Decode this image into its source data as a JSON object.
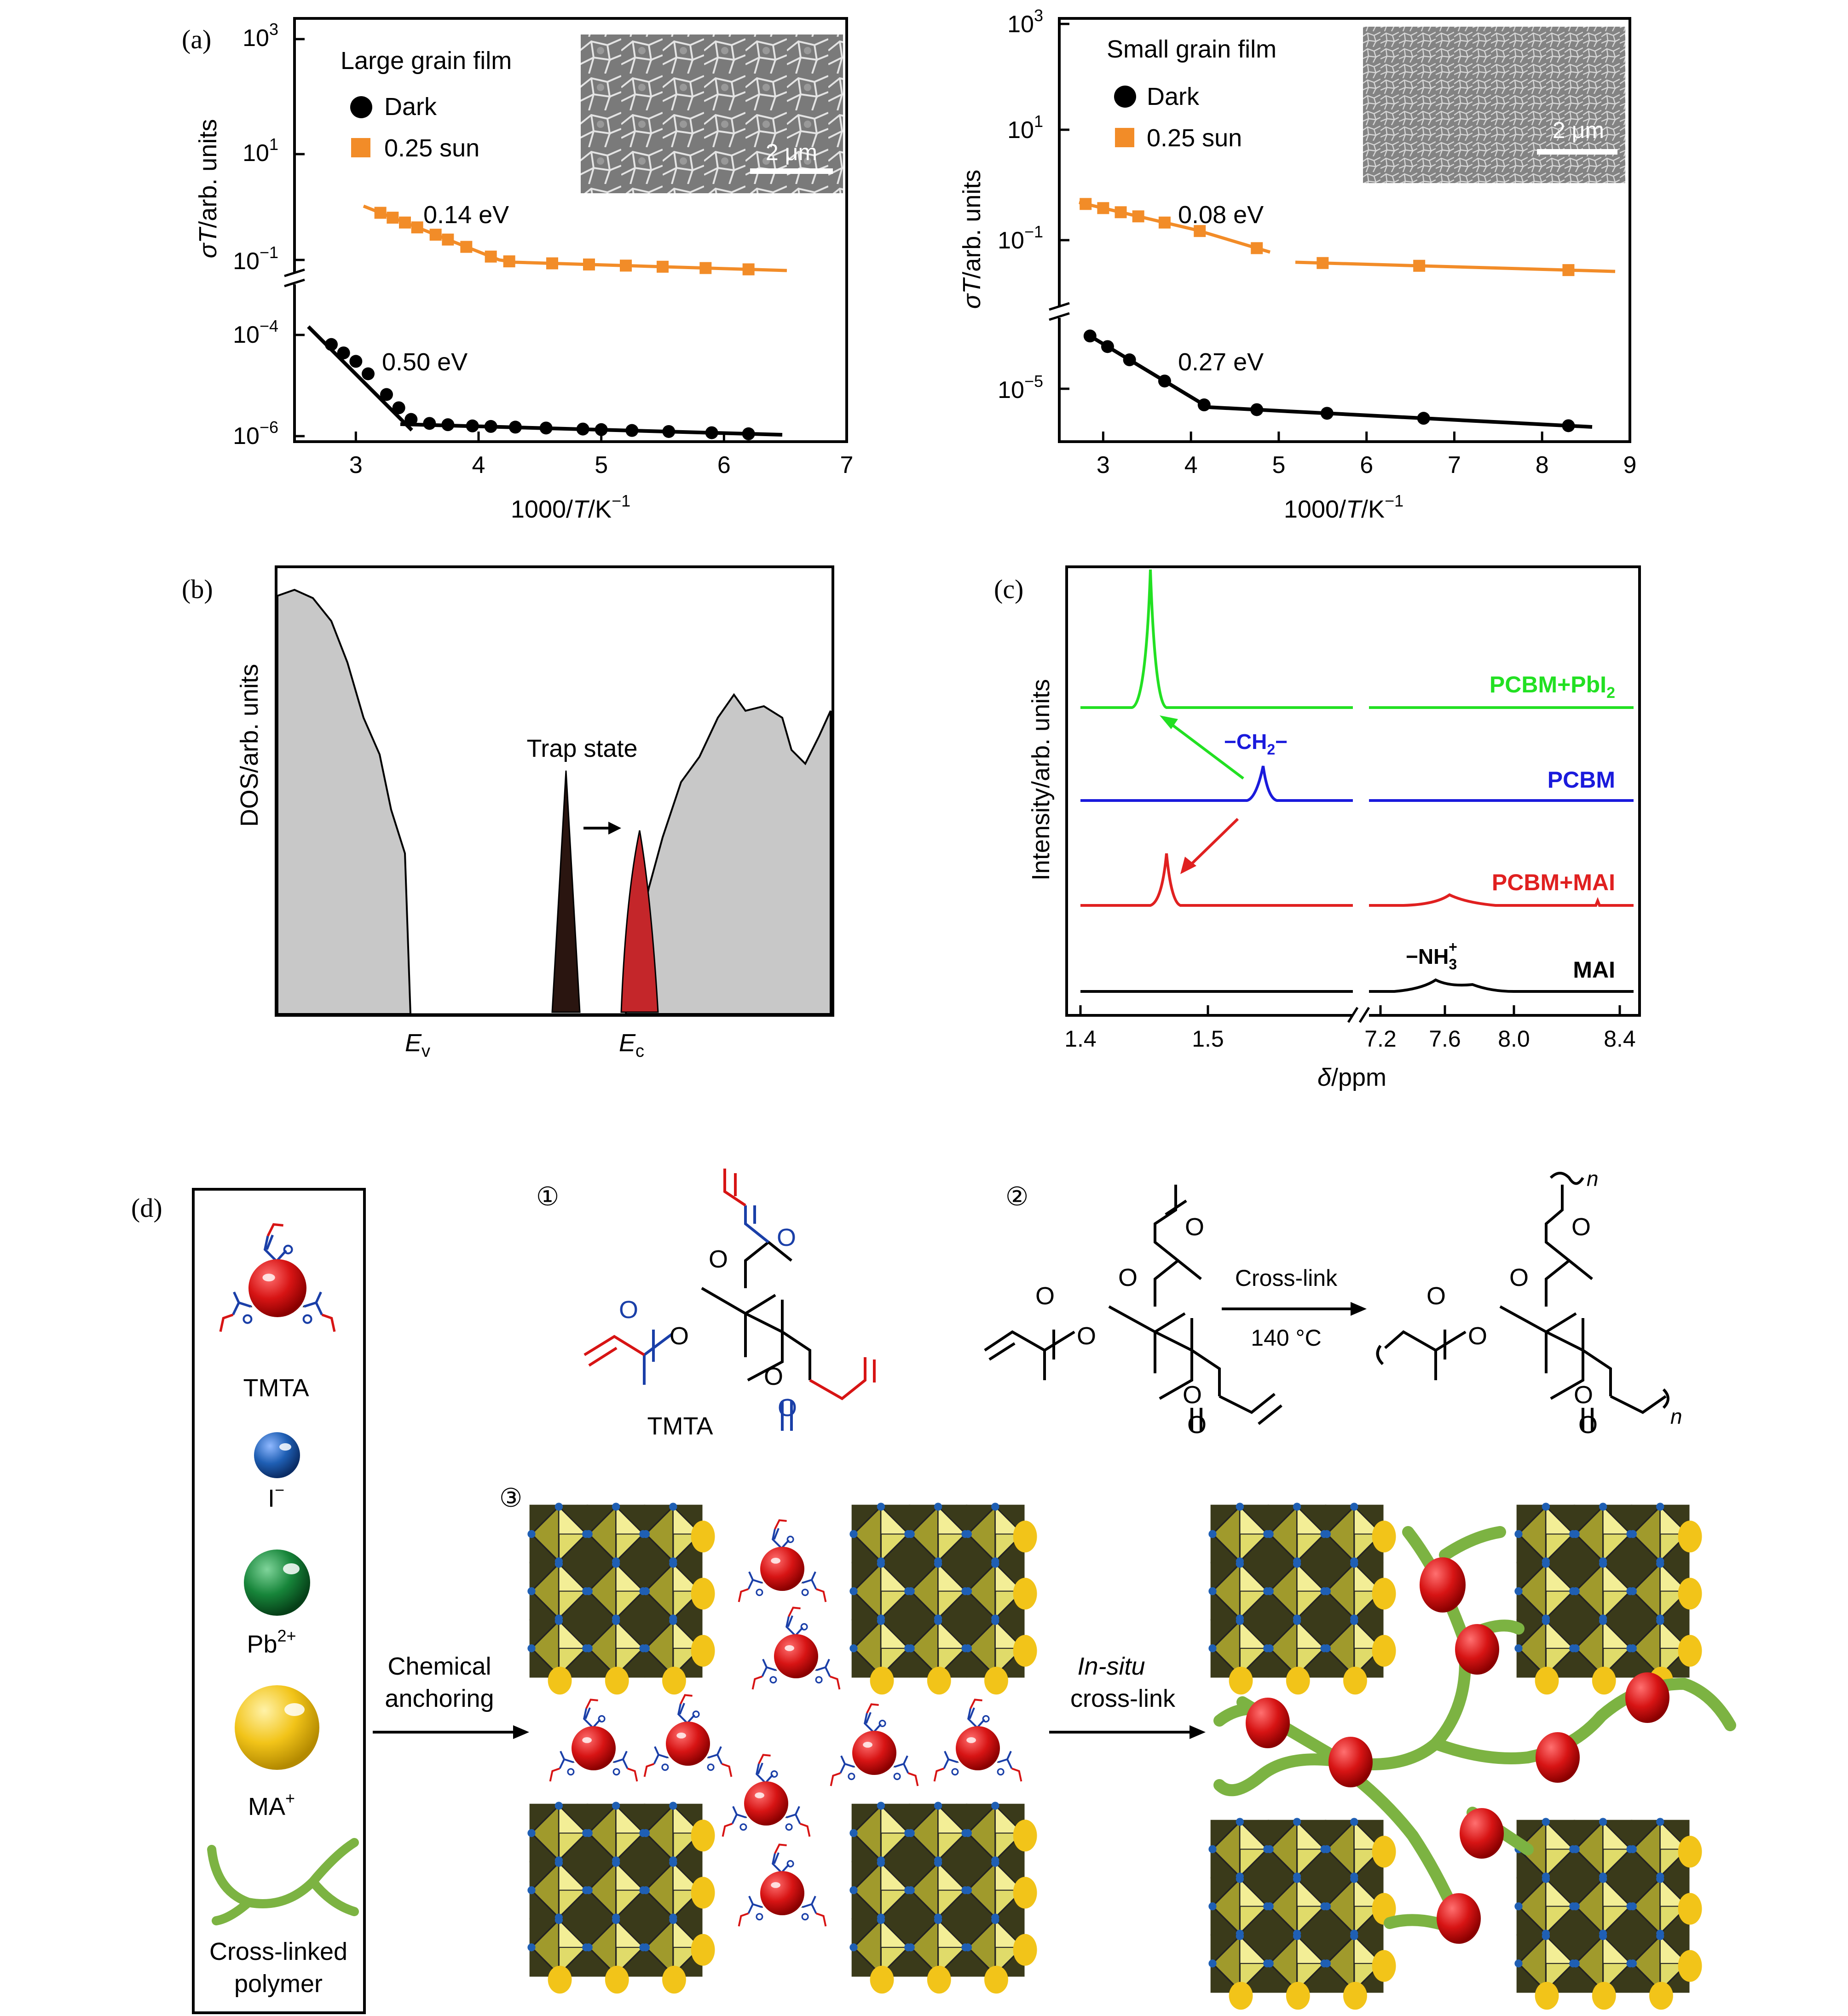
{
  "panels": {
    "a": "(a)",
    "b": "(b)",
    "c": "(c)",
    "d": "(d)"
  },
  "chart_data": [
    {
      "id": "a-left",
      "type": "scatter",
      "xlabel_prefix": "1000/",
      "xlabel_T": "T",
      "xlabel_unit": "/K",
      "xlabel_sup": "−1",
      "ylabel_sigma": "σ",
      "ylabel_T": "T",
      "ylabel_rest": "/arb. units",
      "xlim": [
        2.5,
        7
      ],
      "xticks": [
        "3",
        "4",
        "5",
        "6",
        "7"
      ],
      "yticks_top": [
        "10",
        "10",
        "10"
      ],
      "yticks_top_exp": [
        "3",
        "1",
        "−1"
      ],
      "yticks_bottom": [
        "10",
        "10"
      ],
      "yticks_bottom_exp": [
        "−4",
        "−6"
      ],
      "legend_title": "Large grain film",
      "series": [
        {
          "name": "Dark",
          "color": "#000000",
          "marker": "circle",
          "x": [
            2.8,
            2.9,
            3.0,
            3.1,
            3.25,
            3.35,
            3.45,
            3.6,
            3.75,
            3.95,
            4.1,
            4.3,
            4.55,
            4.85,
            5.0,
            5.25,
            5.55,
            5.9,
            6.2
          ]
        },
        {
          "name": "0.25 sun",
          "color": "#f28c28",
          "marker": "square",
          "x": [
            3.2,
            3.3,
            3.4,
            3.5,
            3.65,
            3.75,
            3.9,
            4.1,
            4.25,
            4.6,
            4.9,
            5.2,
            5.5,
            5.85,
            6.2
          ]
        }
      ],
      "annotations": [
        "0.14 eV",
        "0.50 eV"
      ],
      "inset_scale": "2 μm"
    },
    {
      "id": "a-right",
      "type": "scatter",
      "xlim": [
        2.5,
        9
      ],
      "xticks": [
        "3",
        "4",
        "5",
        "6",
        "7",
        "8",
        "9"
      ],
      "yticks_top": [
        "10",
        "10",
        "10"
      ],
      "yticks_top_exp": [
        "3",
        "1",
        "−1"
      ],
      "yticks_bottom": [
        "10"
      ],
      "yticks_bottom_exp": [
        "−5"
      ],
      "legend_title": "Small grain film",
      "series": [
        {
          "name": "Dark",
          "color": "#000000",
          "marker": "circle",
          "x": [
            2.85,
            3.05,
            3.3,
            3.7,
            4.15,
            4.75,
            5.55,
            6.65,
            8.3
          ]
        },
        {
          "name": "0.25 sun",
          "color": "#f28c28",
          "marker": "square",
          "x": [
            2.8,
            3.0,
            3.2,
            3.4,
            3.7,
            4.1,
            4.75,
            5.5,
            6.6,
            8.3
          ]
        }
      ],
      "annotations": [
        "0.08 eV",
        "0.27 eV"
      ],
      "inset_scale": "2 μm"
    },
    {
      "id": "b",
      "type": "area",
      "ylabel": "DOS/arb. units",
      "xticks": [
        "E",
        "E"
      ],
      "xticks_sub": [
        "v",
        "c"
      ],
      "annotation": "Trap state"
    },
    {
      "id": "c",
      "type": "line",
      "ylabel": "Intensity/arb. units",
      "xlabel_delta": "δ",
      "xlabel_rest": "/ppm",
      "xticks": [
        "1.4",
        "1.5",
        "7.2",
        "7.6",
        "8.0",
        "8.4"
      ],
      "series": [
        {
          "name": "PCBM+PbI",
          "sub": "2",
          "color": "#22e022"
        },
        {
          "name": "PCBM",
          "color": "#1a1adc"
        },
        {
          "name": "PCBM+MAI",
          "color": "#e02020"
        },
        {
          "name": "MAI",
          "color": "#000000"
        }
      ],
      "annotations": [
        "−CH",
        "2",
        "−",
        "−NH",
        "3",
        "+"
      ]
    }
  ],
  "d": {
    "legend": {
      "tmta": "TMTA",
      "iodide": "I",
      "iodide_sup": "−",
      "lead": "Pb",
      "lead_sup": "2+",
      "ma": "MA",
      "ma_sup": "+",
      "polymer_1": "Cross-linked",
      "polymer_2": "polymer"
    },
    "steps": [
      "①",
      "②",
      "③"
    ],
    "tmta_label": "TMTA",
    "oxygen": "O",
    "n_label": "n",
    "crosslink_label": "Cross-link",
    "crosslink_temp": "140 °C",
    "anchoring_1": "Chemical",
    "anchoring_2": "anchoring",
    "insitu_1": "In-situ",
    "insitu_2": "cross-link"
  },
  "colors": {
    "orange": "#f28c28",
    "red": "#d71414",
    "blue": "#1f5fb4",
    "green": "#17853a",
    "yellow": "#f2c419",
    "polymer": "#7cb342",
    "octahedron": "#c7c240"
  }
}
